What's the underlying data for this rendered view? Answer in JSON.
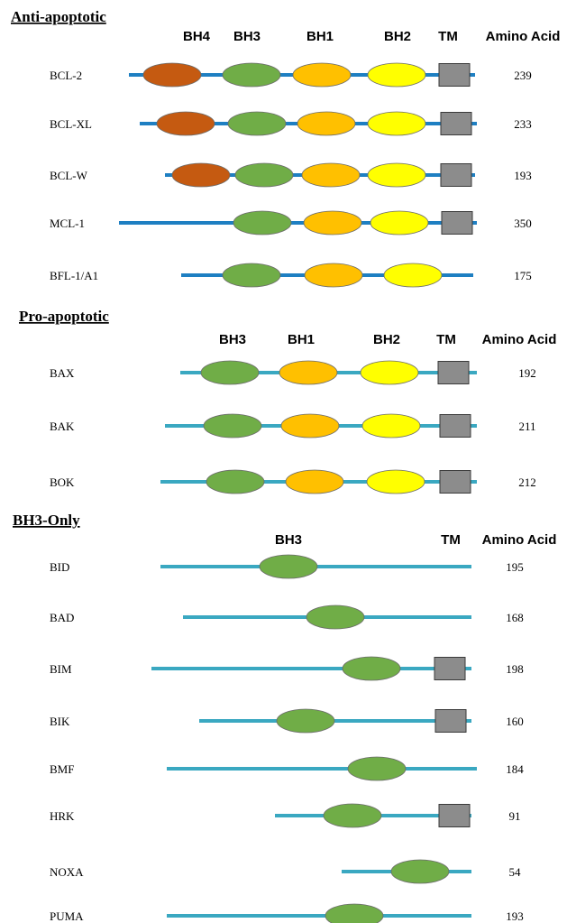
{
  "colors": {
    "line": "#3aa8c1",
    "line_dark": "#1e7fc2",
    "BH4": "#c55a11",
    "BH3": "#70ad47",
    "BH1": "#ffc000",
    "BH2": "#ffff00",
    "TM": "#8c8c8c"
  },
  "sections": [
    {
      "title": "Anti-apoptotic",
      "headers": [
        "BH4",
        "BH3",
        "BH1",
        "BH2",
        "TM",
        "Amino Acid"
      ],
      "proteins": [
        {
          "name": "BCL-2",
          "aa": "239",
          "domains": [
            "BH4",
            "BH3",
            "BH1",
            "BH2",
            "TM"
          ]
        },
        {
          "name": "BCL-XL",
          "aa": "233",
          "domains": [
            "BH4",
            "BH3",
            "BH1",
            "BH2",
            "TM"
          ]
        },
        {
          "name": "BCL-W",
          "aa": "193",
          "domains": [
            "BH4",
            "BH3",
            "BH1",
            "BH2",
            "TM"
          ]
        },
        {
          "name": "MCL-1",
          "aa": "350",
          "domains": [
            "BH3",
            "BH1",
            "BH2",
            "TM"
          ]
        },
        {
          "name": "BFL-1/A1",
          "aa": "175",
          "domains": [
            "BH3",
            "BH1",
            "BH2"
          ]
        }
      ]
    },
    {
      "title": "Pro-apoptotic",
      "headers": [
        "BH3",
        "BH1",
        "BH2",
        "TM",
        "Amino Acid"
      ],
      "proteins": [
        {
          "name": "BAX",
          "aa": "192",
          "domains": [
            "BH3",
            "BH1",
            "BH2",
            "TM"
          ]
        },
        {
          "name": "BAK",
          "aa": "211",
          "domains": [
            "BH3",
            "BH1",
            "BH2",
            "TM"
          ]
        },
        {
          "name": "BOK",
          "aa": "212",
          "domains": [
            "BH3",
            "BH1",
            "BH2",
            "TM"
          ]
        }
      ]
    },
    {
      "title": "BH3-Only",
      "headers": [
        "BH3",
        "TM",
        "Amino Acid"
      ],
      "proteins": [
        {
          "name": "BID",
          "aa": "195",
          "domains": [
            "BH3"
          ]
        },
        {
          "name": "BAD",
          "aa": "168",
          "domains": [
            "BH3"
          ]
        },
        {
          "name": "BIM",
          "aa": "198",
          "domains": [
            "BH3",
            "TM"
          ]
        },
        {
          "name": "BIK",
          "aa": "160",
          "domains": [
            "BH3",
            "TM"
          ]
        },
        {
          "name": "BMF",
          "aa": "184",
          "domains": [
            "BH3"
          ]
        },
        {
          "name": "HRK",
          "aa": "91",
          "domains": [
            "BH3",
            "TM"
          ]
        },
        {
          "name": "NOXA",
          "aa": "54",
          "domains": [
            "BH3"
          ]
        },
        {
          "name": "PUMA",
          "aa": "193",
          "domains": [
            "BH3"
          ]
        }
      ]
    }
  ]
}
